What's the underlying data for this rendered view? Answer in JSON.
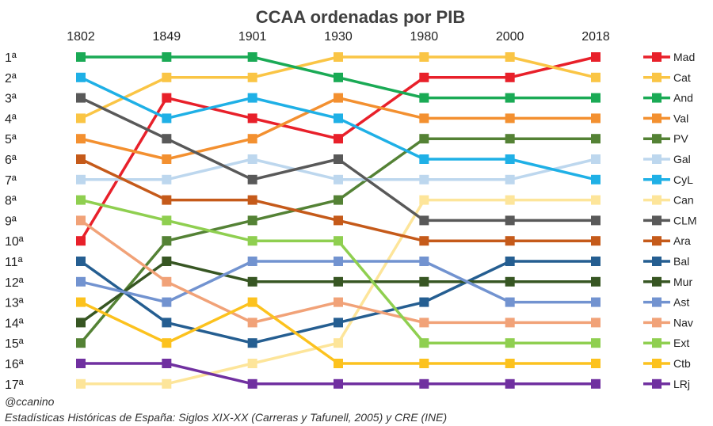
{
  "chart_data": {
    "type": "line",
    "title": "CCAA ordenadas por PIB",
    "x": [
      "1802",
      "1849",
      "1901",
      "1930",
      "1980",
      "2000",
      "2018"
    ],
    "y_ticks": [
      "1ª",
      "2ª",
      "3ª",
      "4ª",
      "5ª",
      "6ª",
      "7ª",
      "8ª",
      "9ª",
      "10ª",
      "11ª",
      "12ª",
      "13ª",
      "14ª",
      "15ª",
      "16ª",
      "17ª"
    ],
    "ylim": [
      1,
      17
    ],
    "y_inverted": true,
    "xlabel": "",
    "ylabel": "",
    "legend_position": "right",
    "series": [
      {
        "name": "Mad",
        "color": "#e8202a",
        "values": [
          10,
          3,
          4,
          5,
          2,
          2,
          1
        ]
      },
      {
        "name": "Cat",
        "color": "#fac545",
        "values": [
          4,
          2,
          2,
          1,
          1,
          1,
          2
        ]
      },
      {
        "name": "And",
        "color": "#1aaa55",
        "values": [
          1,
          1,
          1,
          2,
          3,
          3,
          3
        ]
      },
      {
        "name": "Val",
        "color": "#f39030",
        "values": [
          5,
          6,
          5,
          3,
          4,
          4,
          4
        ]
      },
      {
        "name": "PV",
        "color": "#548235",
        "values": [
          15,
          10,
          9,
          8,
          5,
          5,
          5
        ]
      },
      {
        "name": "Gal",
        "color": "#bdd7ee",
        "values": [
          7,
          7,
          6,
          7,
          7,
          7,
          6
        ]
      },
      {
        "name": "CyL",
        "color": "#1fb0e6",
        "values": [
          2,
          4,
          3,
          4,
          6,
          6,
          7
        ]
      },
      {
        "name": "Can",
        "color": "#fde59a",
        "values": [
          17,
          17,
          16,
          15,
          8,
          8,
          8
        ]
      },
      {
        "name": "CLM",
        "color": "#595959",
        "values": [
          3,
          5,
          7,
          6,
          9,
          9,
          9
        ]
      },
      {
        "name": "Ara",
        "color": "#c55a1a",
        "values": [
          6,
          8,
          8,
          9,
          10,
          10,
          10
        ]
      },
      {
        "name": "Bal",
        "color": "#255e91",
        "values": [
          11,
          14,
          15,
          14,
          13,
          11,
          11
        ]
      },
      {
        "name": "Mur",
        "color": "#375623",
        "values": [
          14,
          11,
          12,
          12,
          12,
          12,
          12
        ]
      },
      {
        "name": "Ast",
        "color": "#7293d0",
        "values": [
          12,
          13,
          11,
          11,
          11,
          13,
          13
        ]
      },
      {
        "name": "Nav",
        "color": "#f1a278",
        "values": [
          9,
          12,
          14,
          13,
          14,
          14,
          14
        ]
      },
      {
        "name": "Ext",
        "color": "#8fcf50",
        "values": [
          8,
          9,
          10,
          10,
          15,
          15,
          15
        ]
      },
      {
        "name": "Ctb",
        "color": "#fcc21e",
        "values": [
          13,
          15,
          13,
          16,
          16,
          16,
          16
        ]
      },
      {
        "name": "LRj",
        "color": "#7030a0",
        "values": [
          16,
          16,
          17,
          17,
          17,
          17,
          17
        ]
      }
    ]
  },
  "credits": {
    "author": "@ccanino",
    "source": "Estadísticas Históricas de España: Siglos XIX-XX (Carreras y Tafunell, 2005) y CRE (INE)"
  }
}
